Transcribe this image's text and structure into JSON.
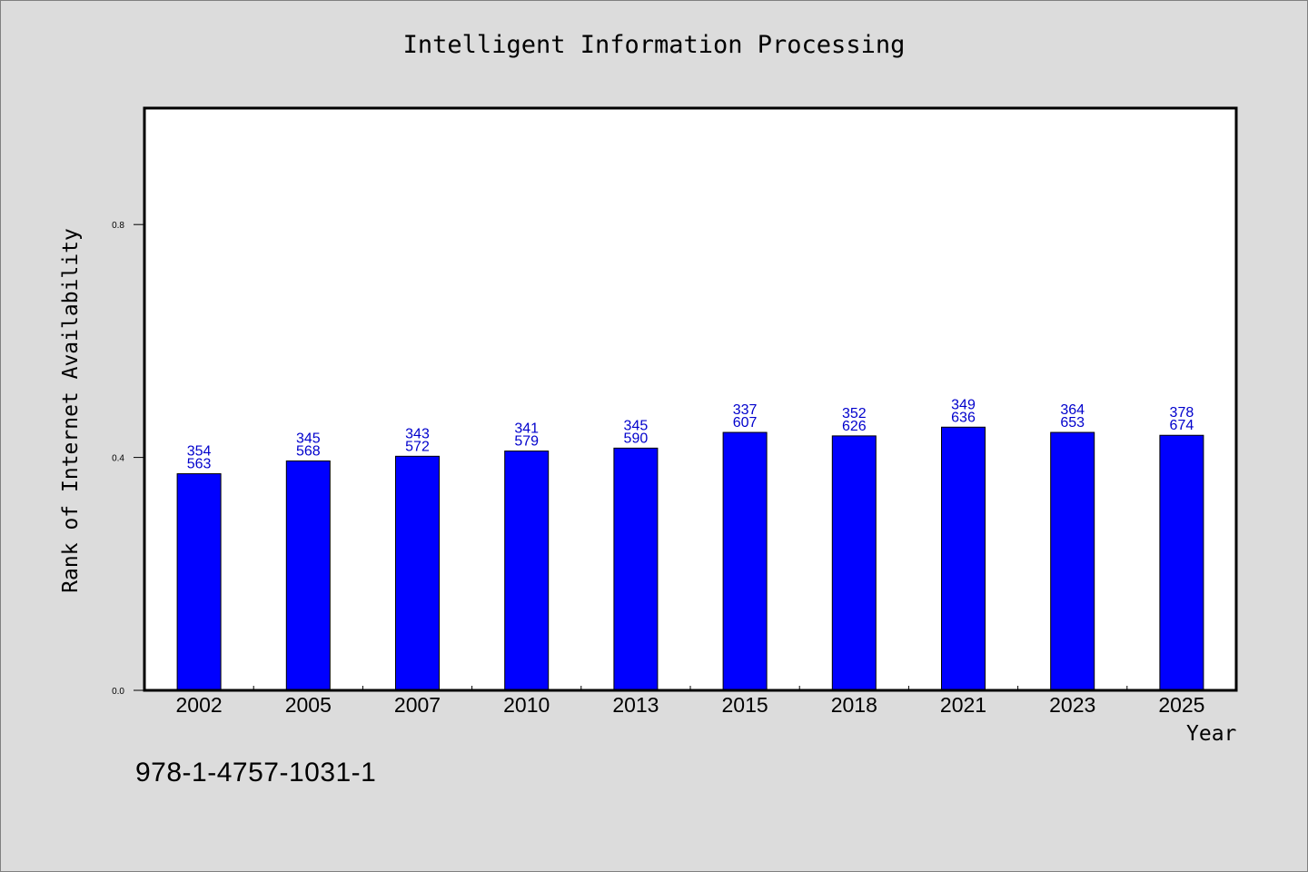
{
  "chart_data": {
    "type": "bar",
    "title": "Intelligent Information Processing",
    "xlabel": "Year",
    "ylabel": "Rank of Internet Availability",
    "categories": [
      "2002",
      "2005",
      "2007",
      "2010",
      "2013",
      "2015",
      "2018",
      "2021",
      "2023",
      "2025"
    ],
    "values": [
      0.372,
      0.394,
      0.402,
      0.411,
      0.416,
      0.443,
      0.437,
      0.452,
      0.443,
      0.438
    ],
    "label_top": [
      "354",
      "345",
      "343",
      "341",
      "345",
      "337",
      "352",
      "349",
      "364",
      "378"
    ],
    "label_bottom": [
      "563",
      "568",
      "572",
      "579",
      "590",
      "607",
      "626",
      "636",
      "653",
      "674"
    ],
    "ylim": [
      0,
      1.0
    ],
    "yticks": [
      "0.0",
      "0.4",
      "0.8"
    ],
    "ytick_values": [
      0.0,
      0.4,
      0.8
    ],
    "grid": false,
    "bar_color": "#0000ff",
    "label_color": "#0000cc"
  },
  "footer": {
    "code": "978-1-4757-1031-1"
  }
}
